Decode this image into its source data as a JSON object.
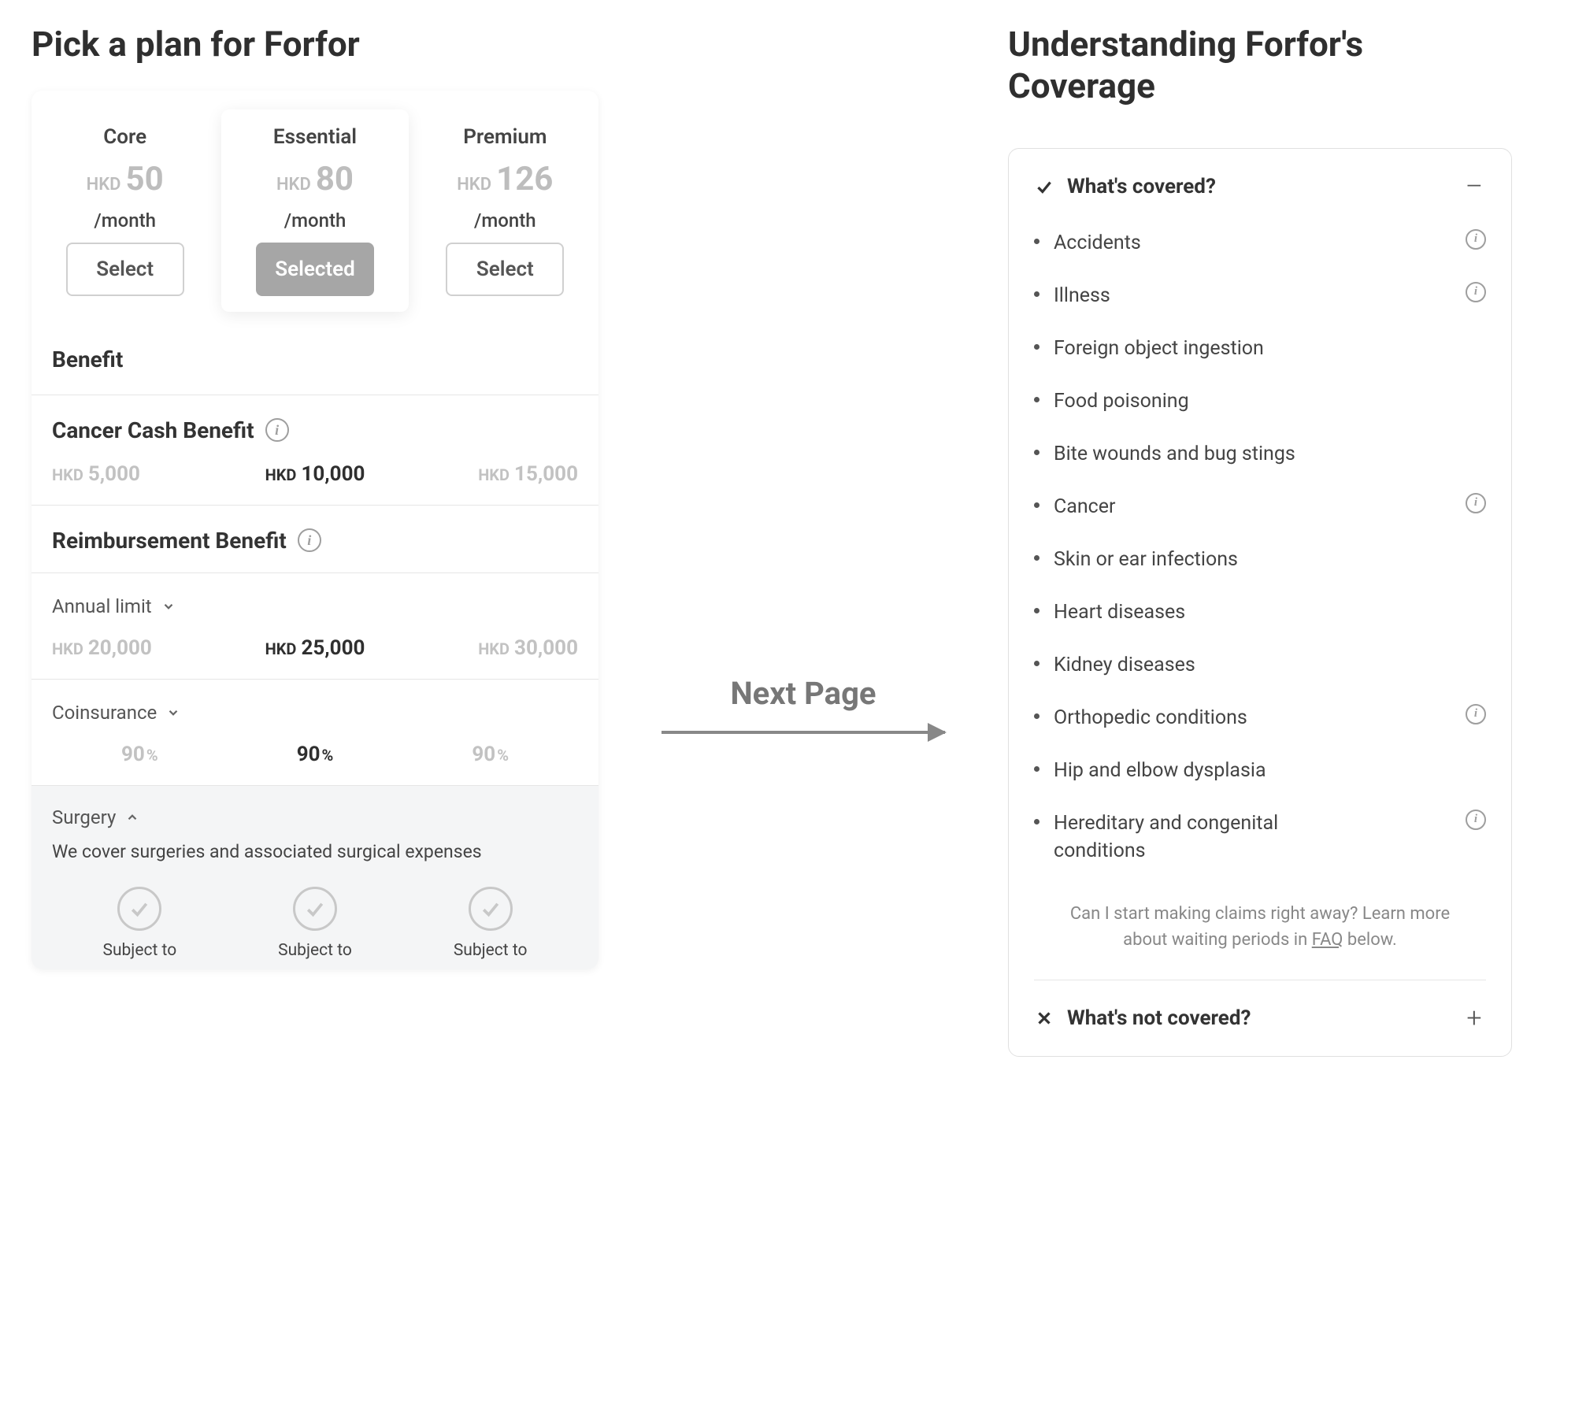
{
  "left": {
    "title": "Pick a plan for Forfor",
    "plans": [
      {
        "name": "Core",
        "currency": "HKD",
        "price": "50",
        "period": "/month",
        "button": "Select",
        "selected": false
      },
      {
        "name": "Essential",
        "currency": "HKD",
        "price": "80",
        "period": "/month",
        "button": "Selected",
        "selected": true
      },
      {
        "name": "Premium",
        "currency": "HKD",
        "price": "126",
        "period": "/month",
        "button": "Select",
        "selected": false
      }
    ],
    "benefit_header": "Benefit",
    "cancer": {
      "title": "Cancer Cash Benefit",
      "values": [
        {
          "cur": "HKD",
          "val": "5,000"
        },
        {
          "cur": "HKD",
          "val": "10,000"
        },
        {
          "cur": "HKD",
          "val": "15,000"
        }
      ]
    },
    "reimbursement": {
      "title": "Reimbursement Benefit"
    },
    "annual": {
      "label": "Annual limit",
      "values": [
        {
          "cur": "HKD",
          "val": "20,000"
        },
        {
          "cur": "HKD",
          "val": "25,000"
        },
        {
          "cur": "HKD",
          "val": "30,000"
        }
      ]
    },
    "coinsurance": {
      "label": "Coinsurance",
      "values": [
        {
          "val": "90",
          "pct": "%"
        },
        {
          "val": "90",
          "pct": "%"
        },
        {
          "val": "90",
          "pct": "%"
        }
      ]
    },
    "surgery": {
      "label": "Surgery",
      "desc": "We cover surgeries and associated surgical expenses",
      "subject": "Subject to"
    }
  },
  "middle": {
    "label": "Next Page"
  },
  "right": {
    "title": "Understanding Forfor's Coverage",
    "covered": {
      "title": "What's covered?",
      "items": [
        {
          "label": "Accidents",
          "info": true
        },
        {
          "label": "Illness",
          "info": true
        },
        {
          "label": "Foreign object ingestion",
          "info": false
        },
        {
          "label": "Food poisoning",
          "info": false
        },
        {
          "label": "Bite wounds and bug stings",
          "info": false
        },
        {
          "label": "Cancer",
          "info": true
        },
        {
          "label": "Skin or ear infections",
          "info": false
        },
        {
          "label": "Heart diseases",
          "info": false
        },
        {
          "label": "Kidney diseases",
          "info": false
        },
        {
          "label": "Orthopedic conditions",
          "info": true
        },
        {
          "label": "Hip and elbow dysplasia",
          "info": false
        },
        {
          "label": "Hereditary and congenital conditions",
          "info": true
        }
      ],
      "faq_pre": "Can I start making claims right away? Learn more about waiting periods in ",
      "faq_link": "FAQ",
      "faq_post": " below."
    },
    "not_covered": {
      "title": "What's not covered?"
    }
  },
  "colors": {
    "text_primary": "#2f2f2f",
    "text_muted": "#bdbdbd",
    "border": "#e6e6e6",
    "selected_btn_bg": "#a6a6a6",
    "arrow": "#888888"
  }
}
